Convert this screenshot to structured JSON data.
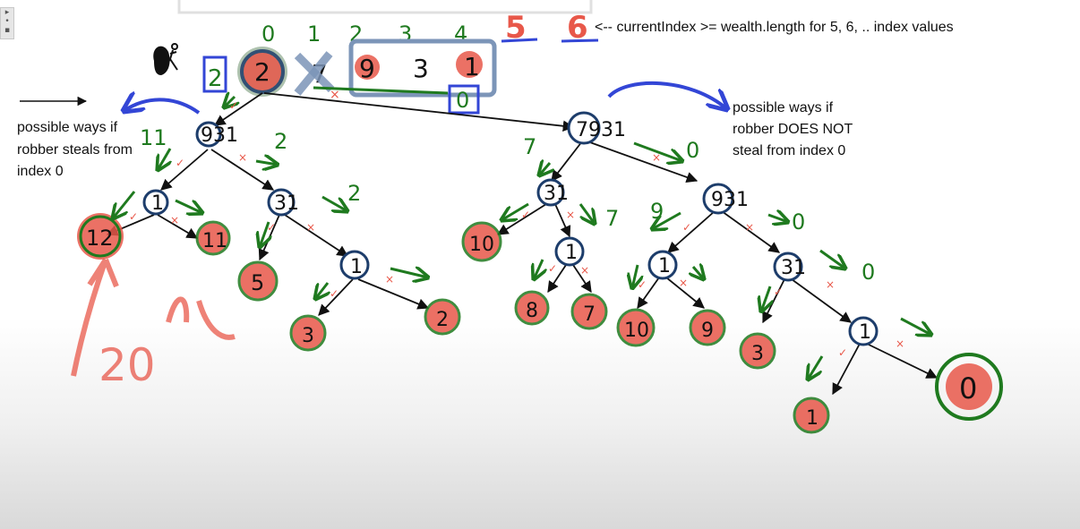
{
  "annotations": {
    "top_right": "<-- currentIndex >= wealth.length for 5, 6, .. index values",
    "left": [
      "possible ways if",
      "robber steals from",
      "index 0"
    ],
    "right": [
      "possible ways if",
      "robber DOES NOT",
      "steal from index 0"
    ]
  },
  "array": {
    "indices": [
      "0",
      "1",
      "2",
      "3",
      "4"
    ],
    "values": [
      "2",
      "7",
      "9",
      "3",
      "1"
    ],
    "extra_indices": [
      "5",
      "6"
    ],
    "left_sum": "2",
    "boxed_zero": "0"
  },
  "tree": {
    "root_value": "2",
    "steal_branch": {
      "node": "931",
      "incoming": "11",
      "steal": {
        "node": "1",
        "incoming": "",
        "steal_result": "12",
        "skip_result": "11"
      },
      "skip": {
        "node": "31",
        "incoming": "2",
        "steal_result": "5",
        "skip": {
          "node": "1",
          "incoming": "2",
          "steal_result": "3",
          "skip_result": "2"
        }
      }
    },
    "skip_branch": {
      "node": "7931",
      "incoming": "0",
      "steal": {
        "node": "31",
        "incoming": "7",
        "steal_result": "10",
        "skip": {
          "node": "1",
          "incoming": "7",
          "steal_result": "8",
          "skip_result": "7"
        }
      },
      "skip": {
        "node": "931",
        "incoming": "0",
        "steal": {
          "node": "1",
          "incoming": "9",
          "steal_result": "10",
          "skip_result": "9"
        },
        "skip": {
          "node": "31",
          "incoming": "0",
          "steal_result": "3",
          "skip": {
            "node": "1",
            "incoming": "0",
            "steal_result": "1",
            "skip_result": "0"
          }
        }
      }
    },
    "edge_labels": {
      "incoming_7": "7",
      "incoming_9": "9",
      "incoming_11": "11",
      "incoming_0": "0",
      "incoming_2": "2"
    },
    "answer_note": "20"
  },
  "colors": {
    "ink": "#111111",
    "green": "#1f7a1f",
    "red": "#e8584a",
    "blue": "#3346d6",
    "navy": "#1d3d6b",
    "steel": "#7c95b8"
  },
  "icons": [
    "robber-icon"
  ]
}
